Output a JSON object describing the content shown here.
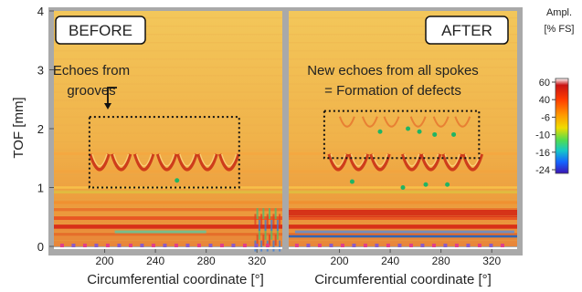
{
  "chart_data": [
    {
      "type": "heatmap",
      "panel_label": "BEFORE",
      "xlabel": "Circumferential coordinate [°]",
      "ylabel": "TOF [mm]",
      "xlim": [
        160,
        340
      ],
      "ylim": [
        0,
        4
      ],
      "x_ticks": [
        200,
        240,
        280,
        320
      ],
      "y_ticks": [
        0,
        1,
        2,
        3,
        4
      ],
      "annotation": {
        "text_lines": [
          "Echoes from",
          "grooves"
        ],
        "box_x": [
          188,
          306
        ],
        "box_y": [
          1.0,
          2.2
        ]
      },
      "groove_echo_centers": [
        196,
        213,
        231,
        249,
        265,
        281,
        298
      ],
      "groove_echo_tof": 1.35,
      "back_wall_tof": 0.3
    },
    {
      "type": "heatmap",
      "panel_label": "AFTER",
      "xlabel": "Circumferential coordinate [°]",
      "xlim": [
        160,
        340
      ],
      "ylim": [
        0,
        4
      ],
      "x_ticks": [
        200,
        240,
        280,
        320
      ],
      "annotation": {
        "text_lines": [
          "New echoes from all spokes",
          "= Formation of defects"
        ],
        "box_x": [
          188,
          310
        ],
        "box_y": [
          1.5,
          2.3
        ]
      },
      "groove_echo_centers": [
        199,
        215,
        232,
        257,
        272,
        289,
        305
      ],
      "groove_echo_tof": 1.35,
      "back_wall_tof": 0.3
    }
  ],
  "colorbar": {
    "title_lines": [
      "Ampl.",
      "[% FS]"
    ],
    "tick_labels": [
      "60",
      "40",
      "-6",
      "-10",
      "-16",
      "-24"
    ],
    "colors": [
      "#ffffff",
      "#c81414",
      "#ff3c00",
      "#ff9600",
      "#f0dc00",
      "#50dc50",
      "#14c8c8",
      "#1464ff",
      "#3c14b4"
    ]
  }
}
